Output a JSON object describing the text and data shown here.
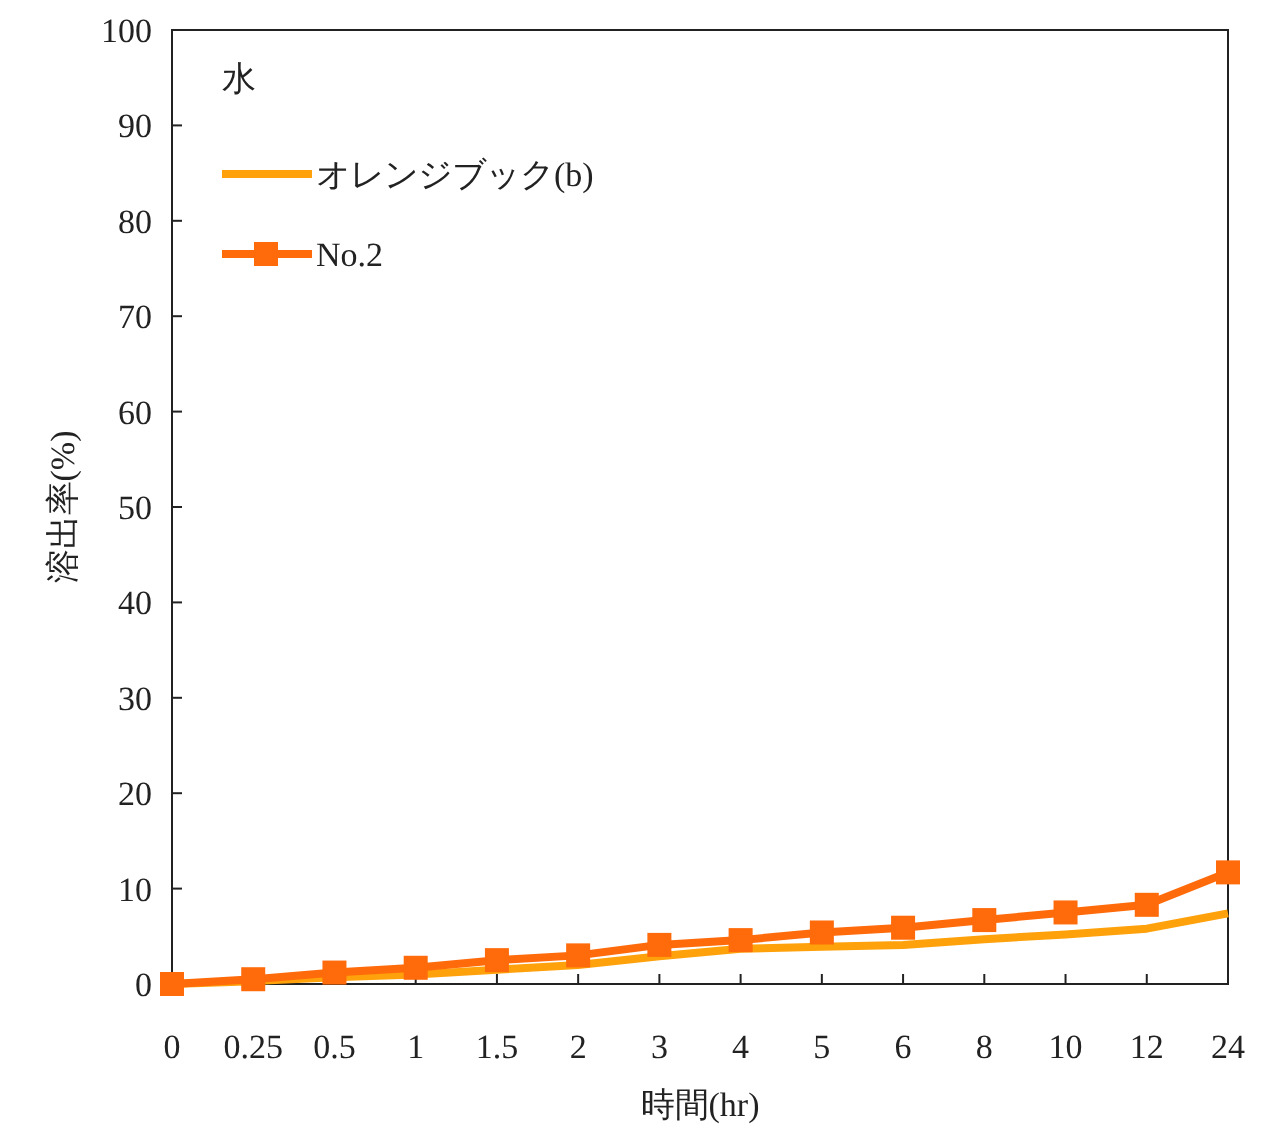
{
  "chart_data": {
    "type": "line",
    "xlabel": "時間(hr)",
    "ylabel": "溶出率(%)",
    "legend_title": "水",
    "categories": [
      "0",
      "0.25",
      "0.5",
      "1",
      "1.5",
      "2",
      "3",
      "4",
      "5",
      "6",
      "8",
      "10",
      "12",
      "24"
    ],
    "ylim": [
      0,
      100
    ],
    "yticks": [
      0,
      10,
      20,
      30,
      40,
      50,
      60,
      70,
      80,
      90,
      100
    ],
    "grid": false,
    "legend": "top left",
    "series": [
      {
        "name": "オレンジブック(b)",
        "color": "#ffa10a",
        "marker": "none",
        "values": [
          0,
          0.3,
          0.7,
          1.0,
          1.5,
          2.0,
          2.9,
          3.7,
          3.9,
          4.1,
          4.7,
          5.2,
          5.8,
          7.4
        ]
      },
      {
        "name": "No.2",
        "color": "#ff6a0a",
        "marker": "square",
        "values": [
          0,
          0.5,
          1.2,
          1.7,
          2.5,
          3.0,
          4.1,
          4.6,
          5.4,
          5.9,
          6.7,
          7.5,
          8.3,
          11.7
        ]
      }
    ]
  }
}
